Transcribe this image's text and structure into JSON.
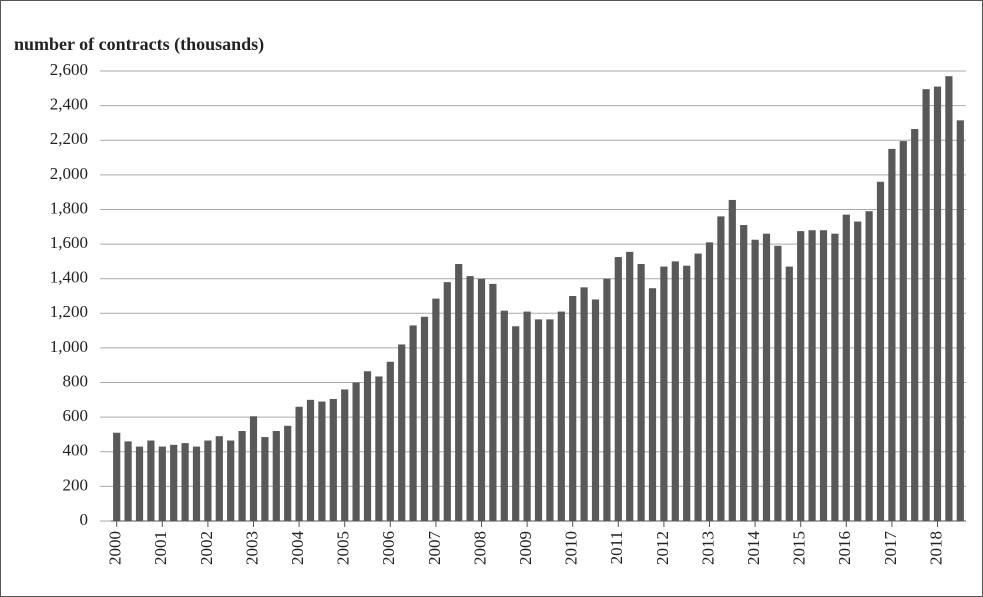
{
  "chart_data": {
    "type": "bar",
    "y_axis_label": "number of contracts (thousands)",
    "categories": [
      "2000",
      null,
      null,
      null,
      "2001",
      null,
      null,
      null,
      "2002",
      null,
      null,
      null,
      "2003",
      null,
      null,
      null,
      "2004",
      null,
      null,
      null,
      "2005",
      null,
      null,
      null,
      "2006",
      null,
      null,
      null,
      "2007",
      null,
      null,
      null,
      "2008",
      null,
      null,
      null,
      "2009",
      null,
      null,
      null,
      "2010",
      null,
      null,
      null,
      "2011",
      null,
      null,
      null,
      "2012",
      null,
      null,
      null,
      "2013",
      null,
      null,
      null,
      "2014",
      null,
      null,
      null,
      "2015",
      null,
      null,
      null,
      "2016",
      null,
      null,
      null,
      "2017",
      null,
      null,
      null,
      "2018",
      null,
      null
    ],
    "values": [
      510,
      460,
      430,
      465,
      430,
      440,
      450,
      430,
      465,
      490,
      465,
      520,
      605,
      485,
      520,
      550,
      660,
      700,
      690,
      705,
      760,
      800,
      865,
      835,
      920,
      1020,
      1130,
      1180,
      1285,
      1380,
      1485,
      1415,
      1400,
      1370,
      1215,
      1125,
      1210,
      1165,
      1165,
      1210,
      1300,
      1350,
      1280,
      1400,
      1525,
      1555,
      1485,
      1345,
      1470,
      1500,
      1475,
      1545,
      1610,
      1760,
      1855,
      1710,
      1625,
      1660,
      1590,
      1470,
      1675,
      1680,
      1680,
      1660,
      1770,
      1730,
      1790,
      1960,
      2150,
      2195,
      2265,
      2495,
      2510,
      2570,
      2315
    ],
    "color": "#595959",
    "ylim": [
      0,
      2600
    ],
    "yticks": [
      0,
      200,
      400,
      600,
      800,
      {
        "value": 1000,
        "label": "1,000"
      },
      {
        "value": 1200,
        "label": "1,200"
      },
      {
        "value": 1400,
        "label": "1,400"
      },
      {
        "value": 1600,
        "label": "1,600"
      },
      {
        "value": 1800,
        "label": "1,800"
      },
      {
        "value": 2000,
        "label": "2,000"
      },
      {
        "value": 2200,
        "label": "2,200"
      },
      {
        "value": 2400,
        "label": "2,400"
      },
      {
        "value": 2600,
        "label": "2,600"
      }
    ],
    "grid": true
  }
}
